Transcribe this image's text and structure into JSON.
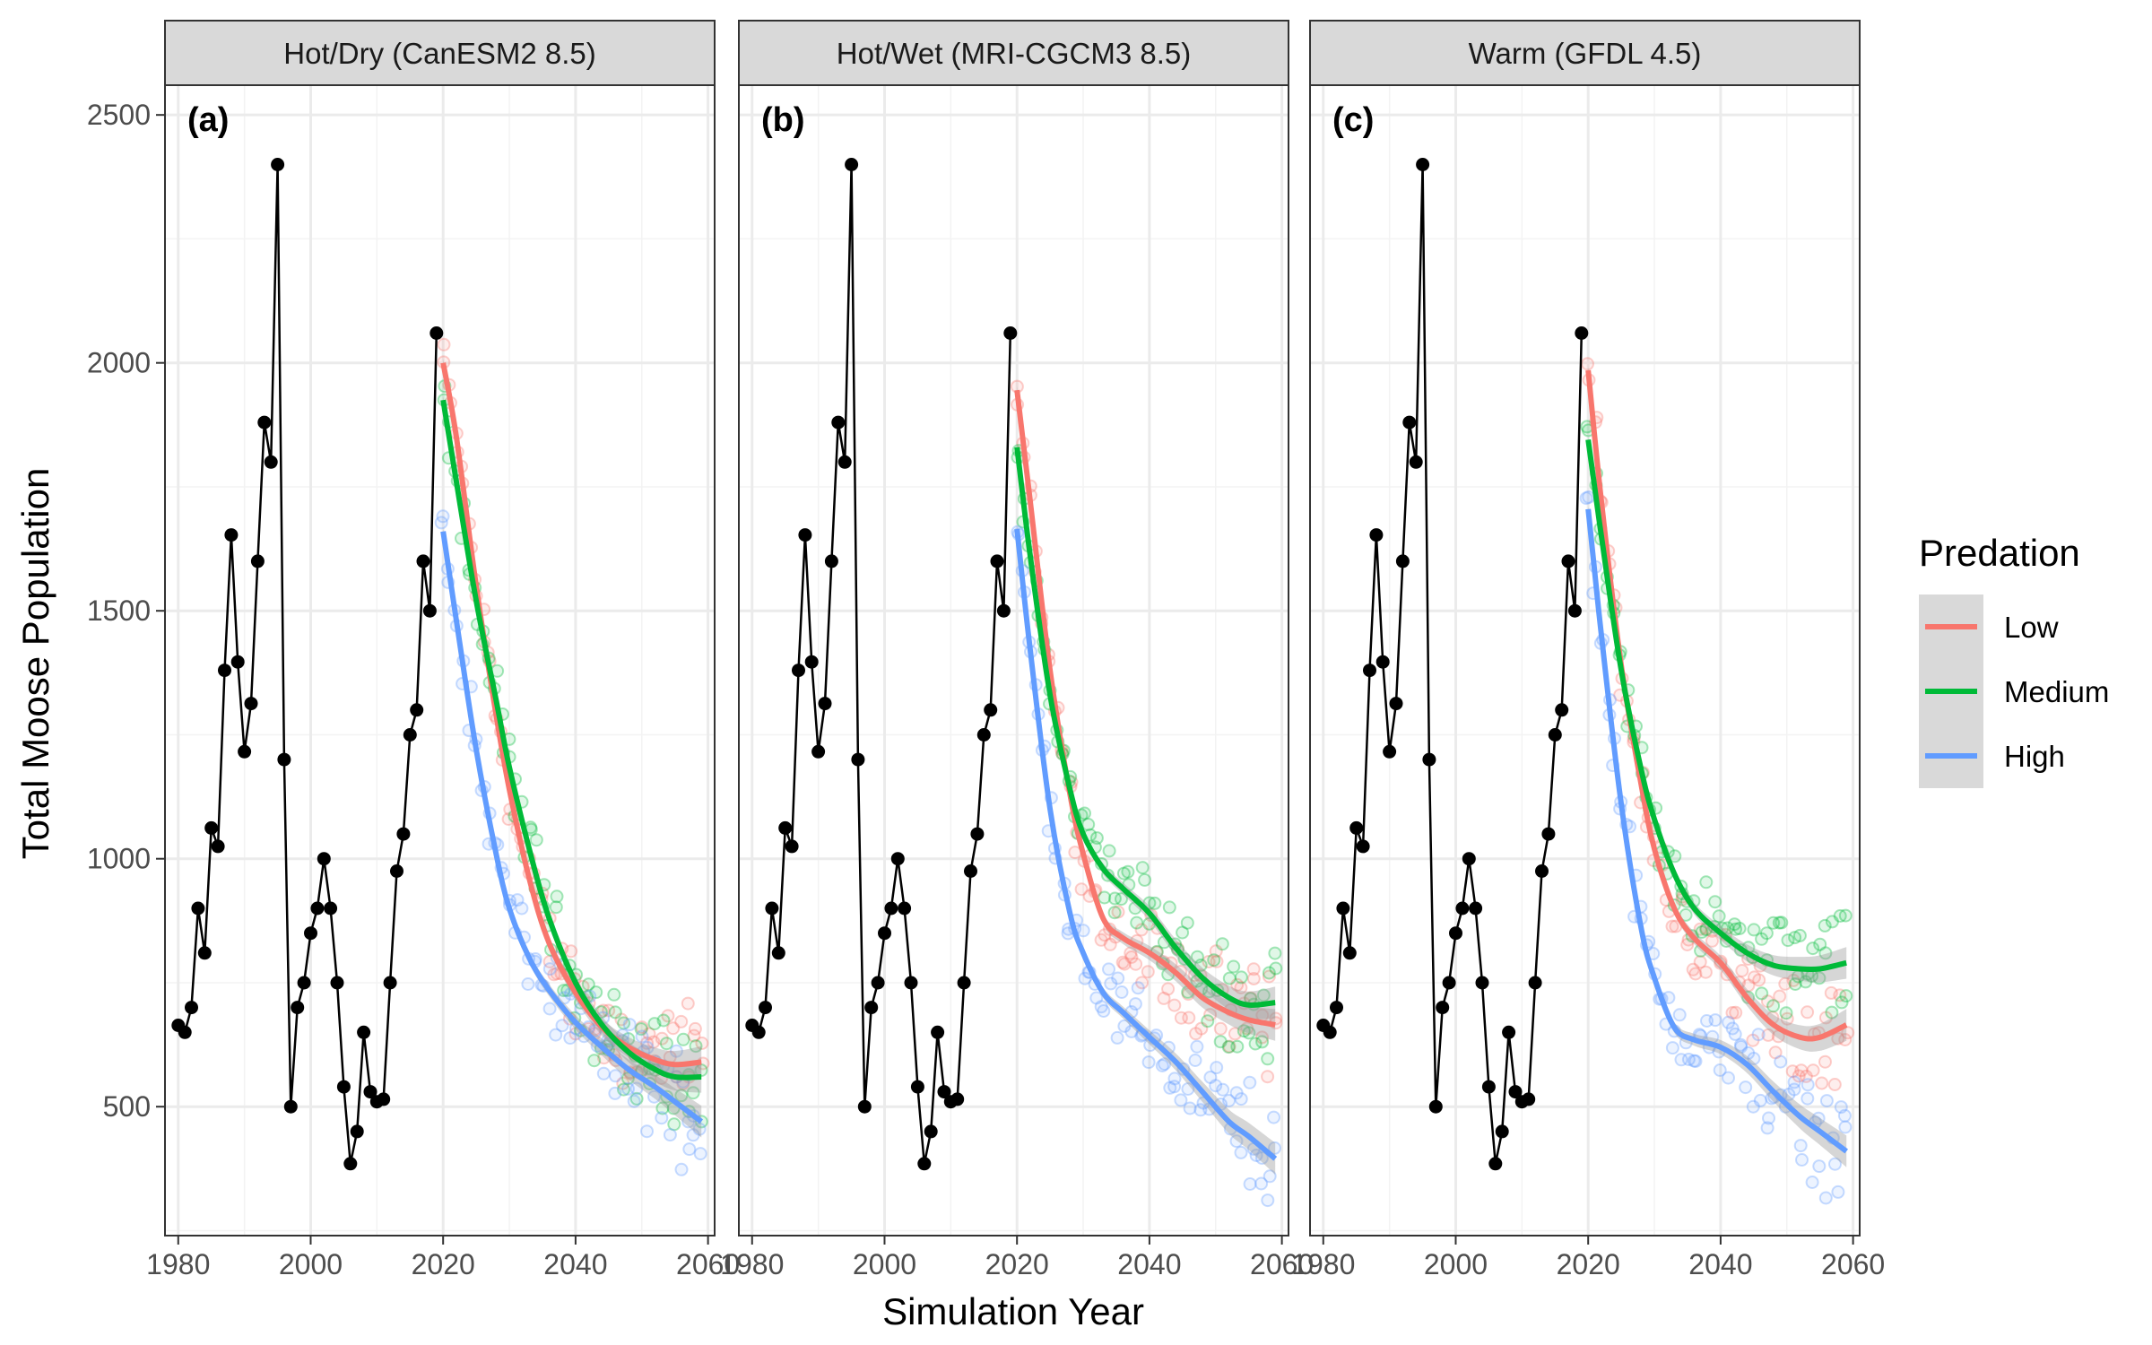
{
  "chart_data": {
    "type": "line",
    "xlabel": "Simulation Year",
    "ylabel": "Total Moose Population",
    "xlim": [
      1978,
      2061
    ],
    "ylim": [
      240,
      2560
    ],
    "x_ticks": [
      1980,
      2000,
      2020,
      2040,
      2060
    ],
    "y_ticks": [
      500,
      1000,
      1500,
      2000,
      2500
    ],
    "grid": true,
    "legend": {
      "title": "Predation",
      "placement": "right",
      "entries": [
        {
          "label": "Low",
          "color": "#F8766D"
        },
        {
          "label": "Medium",
          "color": "#00BA38"
        },
        {
          "label": "High",
          "color": "#619CFF"
        }
      ]
    },
    "observed": {
      "color": "#000000",
      "x": [
        1980,
        1981,
        1982,
        1983,
        1984,
        1985,
        1986,
        1987,
        1988,
        1989,
        1990,
        1991,
        1992,
        1993,
        1994,
        1995,
        1996,
        1997,
        1998,
        1999,
        2000,
        2001,
        2002,
        2003,
        2004,
        2005,
        2006,
        2007,
        2008,
        2009,
        2010,
        2011,
        2012,
        2013,
        2014,
        2015,
        2016,
        2017,
        2018,
        2019
      ],
      "y": [
        664,
        650,
        700,
        900,
        810,
        1062,
        1025,
        1380,
        1653,
        1397,
        1216,
        1313,
        1600,
        1880,
        1800,
        2400,
        1200,
        500,
        700,
        750,
        850,
        900,
        1000,
        900,
        750,
        540,
        385,
        450,
        650,
        530,
        510,
        515,
        750,
        975,
        1050,
        1250,
        1300,
        1600,
        1500,
        2060
      ]
    },
    "panels": [
      {
        "tag": "(a)",
        "strip": "Hot/Dry (CanESM2 8.5)",
        "series": [
          {
            "name": "Low",
            "color": "#F8766D",
            "x": [
              2020,
              2022,
              2025,
              2028,
              2030,
              2033,
              2036,
              2040,
              2044,
              2048,
              2052,
              2055,
              2059
            ],
            "y": [
              2000,
              1850,
              1550,
              1290,
              1140,
              960,
              830,
              730,
              660,
              620,
              595,
              585,
              590
            ]
          },
          {
            "name": "Medium",
            "color": "#00BA38",
            "x": [
              2020,
              2022,
              2025,
              2028,
              2030,
              2033,
              2036,
              2040,
              2044,
              2048,
              2052,
              2055,
              2059
            ],
            "y": [
              1925,
              1760,
              1520,
              1320,
              1185,
              1020,
              880,
              750,
              665,
              610,
              575,
              560,
              560
            ]
          },
          {
            "name": "High",
            "color": "#619CFF",
            "x": [
              2020,
              2022,
              2025,
              2028,
              2030,
              2033,
              2036,
              2040,
              2044,
              2048,
              2052,
              2055,
              2059
            ],
            "y": [
              1660,
              1480,
              1220,
              1010,
              900,
              800,
              735,
              670,
              620,
              575,
              540,
              510,
              470
            ]
          }
        ]
      },
      {
        "tag": "(b)",
        "strip": "Hot/Wet (MRI-CGCM3 8.5)",
        "series": [
          {
            "name": "Low",
            "color": "#F8766D",
            "x": [
              2020,
              2022,
              2025,
              2028,
              2030,
              2033,
              2036,
              2040,
              2044,
              2048,
              2052,
              2055,
              2059
            ],
            "y": [
              1945,
              1720,
              1380,
              1130,
              1010,
              880,
              840,
              810,
              770,
              720,
              690,
              675,
              665
            ]
          },
          {
            "name": "Medium",
            "color": "#00BA38",
            "x": [
              2020,
              2022,
              2025,
              2028,
              2030,
              2033,
              2036,
              2040,
              2044,
              2048,
              2052,
              2055,
              2059
            ],
            "y": [
              1830,
              1610,
              1330,
              1140,
              1050,
              980,
              940,
              890,
              820,
              760,
              720,
              705,
              710
            ]
          },
          {
            "name": "High",
            "color": "#619CFF",
            "x": [
              2020,
              2022,
              2025,
              2028,
              2030,
              2033,
              2036,
              2040,
              2044,
              2048,
              2052,
              2055,
              2059
            ],
            "y": [
              1665,
              1420,
              1100,
              890,
              810,
              730,
              690,
              640,
              590,
              530,
              470,
              440,
              395
            ]
          }
        ]
      },
      {
        "tag": "(c)",
        "strip": "Warm (GFDL 4.5)",
        "series": [
          {
            "name": "Low",
            "color": "#F8766D",
            "x": [
              2020,
              2022,
              2025,
              2028,
              2030,
              2033,
              2036,
              2040,
              2044,
              2048,
              2052,
              2055,
              2059
            ],
            "y": [
              1985,
              1720,
              1390,
              1150,
              1020,
              900,
              840,
              790,
              720,
              665,
              640,
              640,
              665
            ]
          },
          {
            "name": "Medium",
            "color": "#00BA38",
            "x": [
              2020,
              2022,
              2025,
              2028,
              2030,
              2033,
              2036,
              2040,
              2044,
              2048,
              2052,
              2055,
              2059
            ],
            "y": [
              1845,
              1650,
              1380,
              1180,
              1080,
              970,
              900,
              850,
              810,
              785,
              778,
              778,
              790
            ]
          },
          {
            "name": "High",
            "color": "#619CFF",
            "x": [
              2020,
              2022,
              2025,
              2028,
              2030,
              2033,
              2036,
              2040,
              2044,
              2048,
              2052,
              2055,
              2059
            ],
            "y": [
              1705,
              1450,
              1110,
              860,
              760,
              660,
              635,
              620,
              585,
              530,
              480,
              450,
              410
            ]
          }
        ]
      }
    ]
  }
}
